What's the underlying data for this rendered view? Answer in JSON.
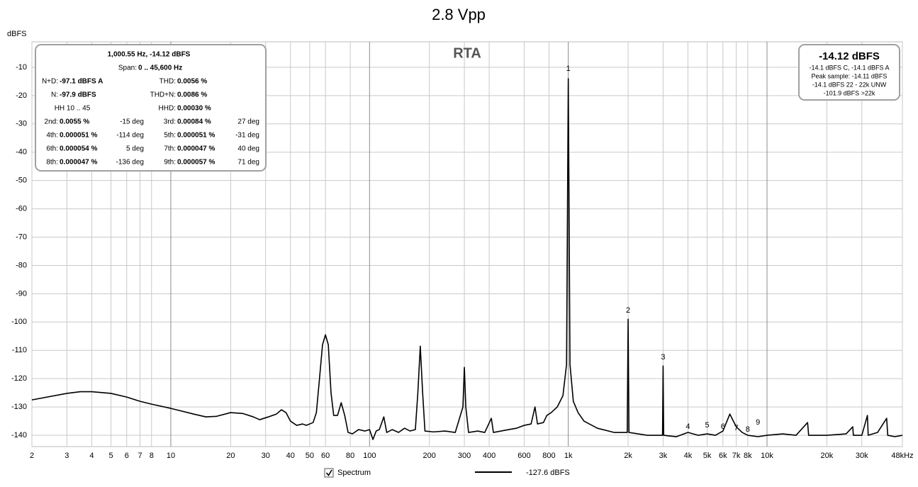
{
  "chart_data": {
    "type": "line",
    "title": "2.8 Vpp",
    "plot_label": "RTA",
    "y_label": "dBFS",
    "x_scale": "log",
    "grid": true,
    "xlim": [
      2,
      48000
    ],
    "ylim": [
      -144,
      -1
    ],
    "xticks": [
      2,
      3,
      4,
      5,
      6,
      7,
      8,
      10,
      20,
      30,
      40,
      50,
      60,
      80,
      100,
      200,
      300,
      400,
      600,
      800,
      {
        "value": 1000,
        "label": "1k"
      },
      {
        "value": 2000,
        "label": "2k"
      },
      {
        "value": 3000,
        "label": "3k"
      },
      {
        "value": 4000,
        "label": "4k"
      },
      {
        "value": 5000,
        "label": "5k"
      },
      {
        "value": 6000,
        "label": "6k"
      },
      {
        "value": 7000,
        "label": "7k"
      },
      {
        "value": 8000,
        "label": "8k"
      },
      {
        "value": 10000,
        "label": "10k"
      },
      {
        "value": 20000,
        "label": "20k"
      },
      {
        "value": 30000,
        "label": "30k"
      },
      {
        "value": 48000,
        "label": "48kHz"
      }
    ],
    "yticks": [
      -10,
      -20,
      -30,
      -40,
      -50,
      -60,
      -70,
      -80,
      -90,
      -100,
      -110,
      -120,
      -130,
      -140
    ],
    "x": [
      2,
      3,
      3.5,
      4,
      5,
      6,
      7,
      8,
      10,
      13,
      15,
      17,
      20,
      23,
      26,
      28,
      31,
      34,
      36,
      38,
      40,
      43,
      46,
      48,
      50,
      52,
      54,
      56,
      58,
      60,
      62,
      64,
      66,
      69,
      72,
      75,
      78,
      82,
      88,
      95,
      100,
      104,
      108,
      112,
      118,
      122,
      130,
      140,
      150,
      160,
      170,
      175,
      180,
      185,
      190,
      210,
      240,
      270,
      295,
      300,
      305,
      315,
      350,
      380,
      410,
      420,
      500,
      550,
      600,
      650,
      680,
      700,
      750,
      780,
      820,
      880,
      940,
      980,
      1000,
      1020,
      1060,
      1120,
      1200,
      1400,
      1700,
      1980,
      2000,
      2020,
      2500,
      2980,
      3000,
      3020,
      3500,
      4000,
      4500,
      5000,
      5500,
      6000,
      6500,
      7000,
      7500,
      8000,
      9000,
      10000,
      12000,
      14000,
      16000,
      16200,
      20000,
      25000,
      27000,
      27200,
      30000,
      32000,
      32300,
      36000,
      40000,
      40500,
      44000,
      48000
    ],
    "series": [
      {
        "name": "Spectrum",
        "color": "#000000",
        "values": [
          -127.5,
          -125.2,
          -124.6,
          -124.6,
          -125.2,
          -126.5,
          -128,
          -129,
          -130.5,
          -132.5,
          -133.5,
          -133.3,
          -132,
          -132.3,
          -133.5,
          -134.5,
          -133.5,
          -132.5,
          -131,
          -132,
          -135,
          -136.5,
          -136,
          -136.5,
          -136,
          -135.5,
          -132,
          -120,
          -108,
          -104.5,
          -108,
          -125,
          -133,
          -133,
          -128.5,
          -133,
          -139,
          -139.5,
          -138,
          -138.5,
          -138,
          -141.5,
          -138.5,
          -138,
          -133.5,
          -139,
          -138,
          -139,
          -137.5,
          -138.5,
          -138,
          -125,
          -108.5,
          -125,
          -138.5,
          -138.8,
          -138.5,
          -139,
          -130,
          -116,
          -130,
          -139,
          -138.5,
          -139,
          -134,
          -139,
          -138,
          -137.5,
          -136.5,
          -136,
          -130,
          -136,
          -135.5,
          -133,
          -132,
          -130,
          -126,
          -115,
          -14,
          -115,
          -128,
          -132,
          -135,
          -137.5,
          -139,
          -139,
          -99,
          -139,
          -140,
          -140,
          -115.5,
          -140,
          -140.5,
          -139,
          -140,
          -139.5,
          -140,
          -138.5,
          -132.5,
          -137,
          -139,
          -140,
          -140.5,
          -140,
          -139.5,
          -140,
          -135.5,
          -140,
          -140,
          -139.5,
          -137,
          -140,
          -140,
          -133,
          -140,
          -139,
          -134,
          -140,
          -140.5,
          -140
        ]
      }
    ],
    "legend_value": "-127.6 dBFS",
    "annotations": [
      {
        "text": "1",
        "x": 1000,
        "y": -10.5
      },
      {
        "text": "2",
        "x": 2000,
        "y": -96
      },
      {
        "text": "3",
        "x": 3000,
        "y": -112.5
      },
      {
        "text": "4",
        "x": 4000,
        "y": -137
      },
      {
        "text": "5",
        "x": 5000,
        "y": -136.5
      },
      {
        "text": "6",
        "x": 6000,
        "y": -137
      },
      {
        "text": "7",
        "x": 7000,
        "y": -137.5
      },
      {
        "text": "8",
        "x": 8000,
        "y": -138
      },
      {
        "text": "9",
        "x": 9000,
        "y": -135.5
      }
    ],
    "info_box": {
      "header": "1,000.55 Hz, -14.12 dBFS",
      "span_label": "Span:",
      "span": "0 .. 45,600 Hz",
      "measures": [
        {
          "label": "N+D:",
          "value": "-97.1 dBFS A"
        },
        {
          "label": "THD:",
          "value": "0.0056 %"
        },
        {
          "label": "N:",
          "value": "-97.9 dBFS"
        },
        {
          "label": "THD+N:",
          "value": "0.0086 %"
        },
        {
          "label": "HH 10 .. 45"
        },
        {
          "label": "HHD:",
          "value": "0.00030 %"
        }
      ],
      "harmonics": [
        {
          "label": "2nd:",
          "value": "0.0055 %",
          "phase": "-15 deg"
        },
        {
          "label": "3rd:",
          "value": "0.00084 %",
          "phase": "27 deg"
        },
        {
          "label": "4th:",
          "value": "0.000051 %",
          "phase": "-114 deg"
        },
        {
          "label": "5th:",
          "value": "0.000051 %",
          "phase": "-31 deg"
        },
        {
          "label": "6th:",
          "value": "0.000054 %",
          "phase": "5 deg"
        },
        {
          "label": "7th:",
          "value": "0.000047 %",
          "phase": "40 deg"
        },
        {
          "label": "8th:",
          "value": "0.000047 %",
          "phase": "-136 deg"
        },
        {
          "label": "9th:",
          "value": "0.000057 %",
          "phase": "71 deg"
        }
      ]
    },
    "level_box": {
      "headline": "-14.12 dBFS",
      "lines": [
        "-14.1 dBFS C, -14.1 dBFS A",
        "Peak sample: -14.11 dBFS",
        "-14.1 dBFS 22 - 22k UNW",
        "-101.9 dBFS >22k"
      ]
    }
  }
}
